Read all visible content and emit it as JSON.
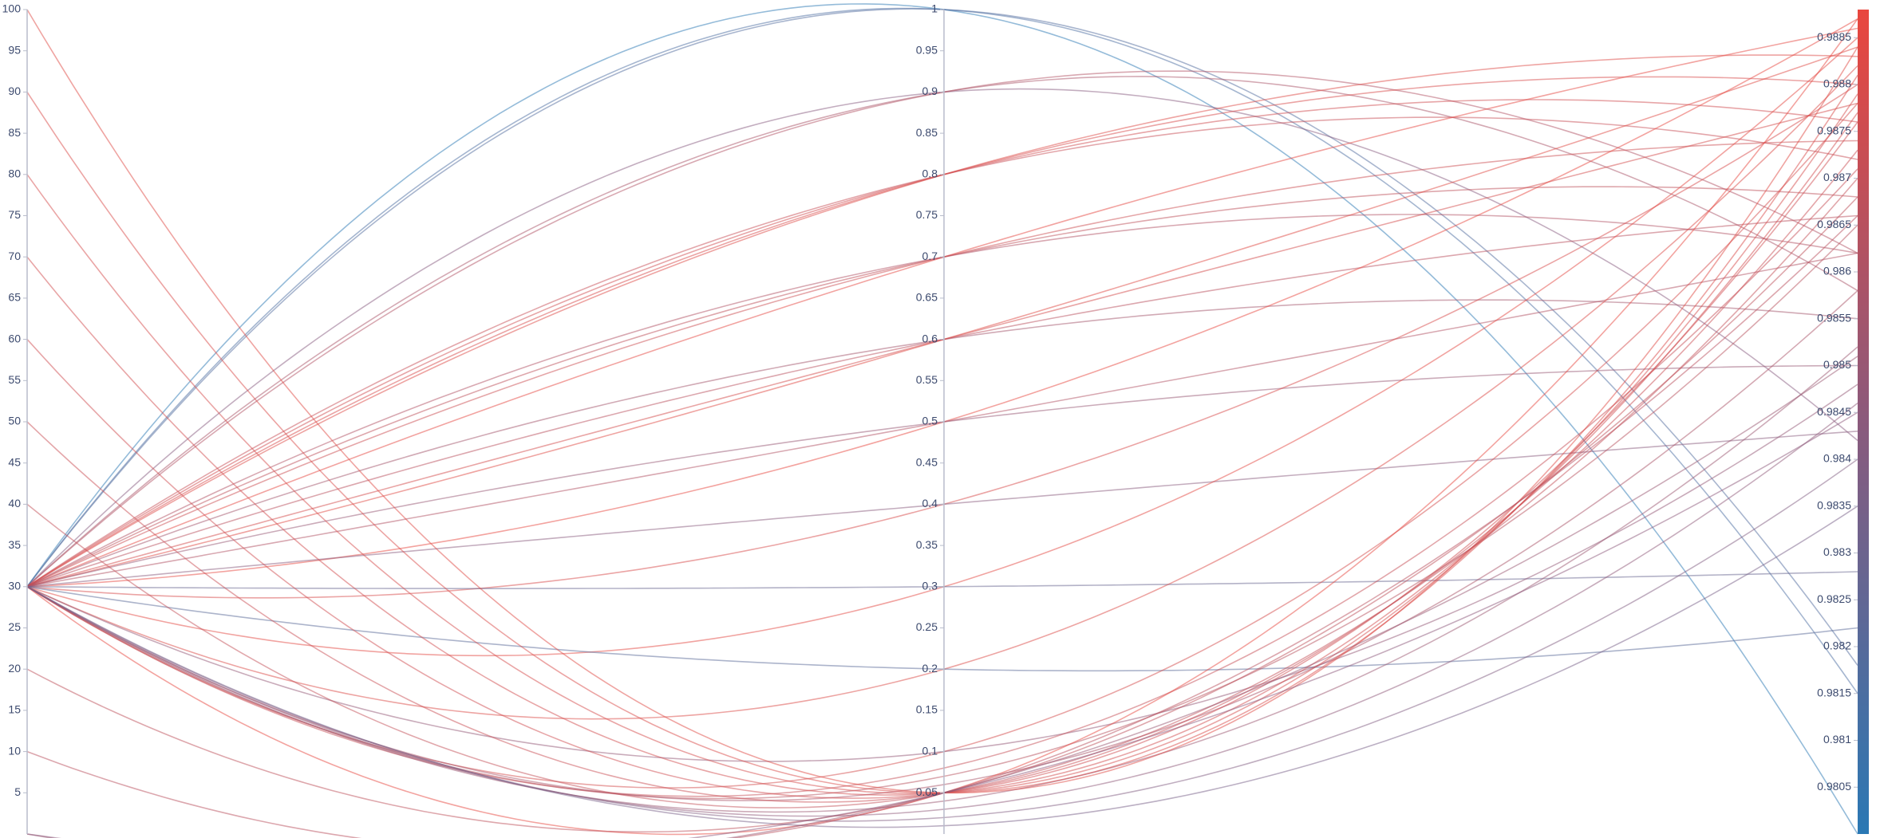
{
  "chart_data": {
    "type": "parallel",
    "colorscale": [
      "#2a78b4",
      "#8b5a7c",
      "#e9473e"
    ],
    "axes": [
      {
        "range": [
          0,
          100
        ],
        "ticks": [
          5,
          10,
          15,
          20,
          25,
          30,
          35,
          40,
          45,
          50,
          55,
          60,
          65,
          70,
          75,
          80,
          85,
          90,
          95,
          100
        ]
      },
      {
        "range": [
          0,
          1
        ],
        "ticks": [
          0.05,
          0.1,
          0.15,
          0.2,
          0.25,
          0.3,
          0.35,
          0.4,
          0.45,
          0.5,
          0.55,
          0.6,
          0.65,
          0.7,
          0.75,
          0.8,
          0.85,
          0.9,
          0.95,
          1
        ]
      },
      {
        "range": [
          0.98,
          0.9888
        ],
        "colorbar": true,
        "ticks": [
          0.9805,
          0.981,
          0.9815,
          0.982,
          0.9825,
          0.983,
          0.9835,
          0.984,
          0.9845,
          0.985,
          0.9855,
          0.986,
          0.9865,
          0.987,
          0.9875,
          0.988,
          0.9885
        ]
      }
    ],
    "runs": [
      [
        30,
        1,
        0.98
      ],
      [
        30,
        1,
        0.9815
      ],
      [
        30,
        1,
        0.9818
      ],
      [
        30,
        0.9,
        0.9842
      ],
      [
        30,
        0.9,
        0.9862
      ],
      [
        30,
        0.9,
        0.9858
      ],
      [
        30,
        0.8,
        0.9883
      ],
      [
        30,
        0.8,
        0.9876
      ],
      [
        30,
        0.8,
        0.9872
      ],
      [
        30,
        0.8,
        0.988
      ],
      [
        30,
        0.7,
        0.9886
      ],
      [
        30,
        0.7,
        0.9868
      ],
      [
        30,
        0.7,
        0.9862
      ],
      [
        30,
        0.7,
        0.9874
      ],
      [
        30,
        0.6,
        0.9884
      ],
      [
        30,
        0.6,
        0.9855
      ],
      [
        30,
        0.6,
        0.9866
      ],
      [
        30,
        0.6,
        0.9878
      ],
      [
        30,
        0.5,
        0.9887
      ],
      [
        30,
        0.5,
        0.985
      ],
      [
        30,
        0.5,
        0.9862
      ],
      [
        30,
        0.4,
        0.988
      ],
      [
        30,
        0.4,
        0.9843
      ],
      [
        30,
        0.3,
        0.9885
      ],
      [
        30,
        0.3,
        0.9828
      ],
      [
        30,
        0.2,
        0.9882
      ],
      [
        30,
        0.2,
        0.9822
      ],
      [
        30,
        0.1,
        0.9878
      ],
      [
        30,
        0.1,
        0.9848
      ],
      [
        30,
        0.08,
        0.9871
      ],
      [
        30,
        0.07,
        0.9865
      ],
      [
        30,
        0.06,
        0.9858
      ],
      [
        30,
        0.05,
        0.9887
      ],
      [
        30,
        0.04,
        0.9852
      ],
      [
        30,
        0.03,
        0.9846
      ],
      [
        30,
        0.02,
        0.984
      ],
      [
        30,
        0.01,
        0.9835
      ],
      [
        100,
        0.05,
        0.9884
      ],
      [
        90,
        0.05,
        0.9881
      ],
      [
        80,
        0.05,
        0.9879
      ],
      [
        70,
        0.05,
        0.9877
      ],
      [
        60,
        0.05,
        0.9876
      ],
      [
        50,
        0.05,
        0.9873
      ],
      [
        40,
        0.05,
        0.987
      ],
      [
        20,
        0.05,
        0.9868
      ],
      [
        10,
        0.05,
        0.9866
      ],
      [
        0,
        0.05,
        0.9851
      ],
      [
        0,
        0.05,
        0.9845
      ]
    ]
  }
}
